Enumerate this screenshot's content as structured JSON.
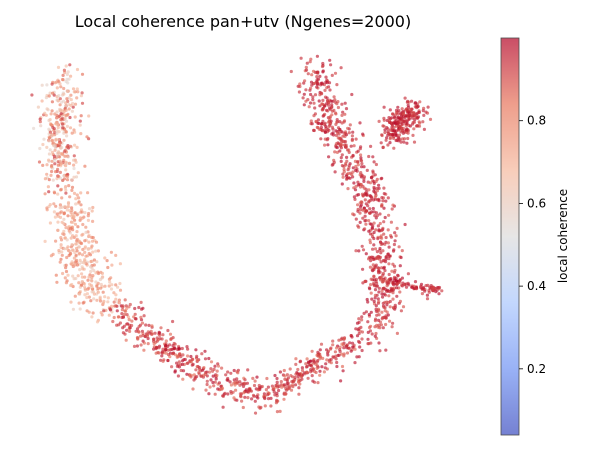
{
  "chart_data": {
    "type": "scatter",
    "title": "Local coherence pan+utv (Ngenes=2000)",
    "xlabel": "",
    "ylabel": "",
    "axes_visible": false,
    "colormap": "coolwarm",
    "colorbar": {
      "label": "local coherence",
      "range": [
        0.04,
        1.0
      ],
      "ticks": [
        0.2,
        0.4,
        0.6,
        0.8
      ],
      "tick_labels": [
        "0.2",
        "0.4",
        "0.6",
        "0.8"
      ],
      "colors": [
        "#3b4cc0",
        "#6f92f3",
        "#aac7fd",
        "#dddcdc",
        "#f6b99e",
        "#e8765c",
        "#b40426"
      ],
      "alpha": 0.65
    },
    "cluster_regions": [
      {
        "region": "left arm upper",
        "coherence_range": [
          0.55,
          0.95
        ]
      },
      {
        "region": "left arm lower",
        "coherence_range": [
          0.6,
          0.85
        ]
      },
      {
        "region": "bottom trough",
        "coherence_range": [
          0.85,
          1.0
        ]
      },
      {
        "region": "right arm",
        "coherence_range": [
          0.88,
          1.0
        ]
      },
      {
        "region": "right upper tip",
        "coherence_range": [
          0.9,
          1.0
        ]
      },
      {
        "region": "right side branch",
        "coherence_range": [
          0.9,
          1.0
        ]
      }
    ],
    "n_points": 2600
  }
}
